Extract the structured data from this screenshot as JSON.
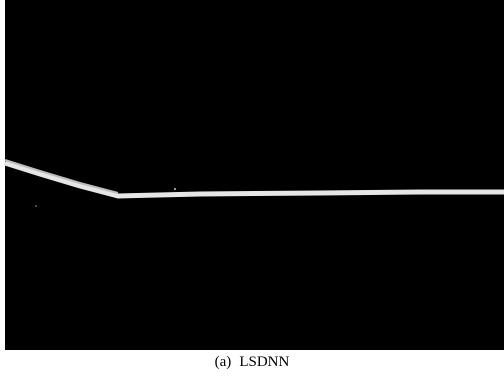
{
  "figure": {
    "label": "(a)",
    "caption": "LSDNN"
  }
}
